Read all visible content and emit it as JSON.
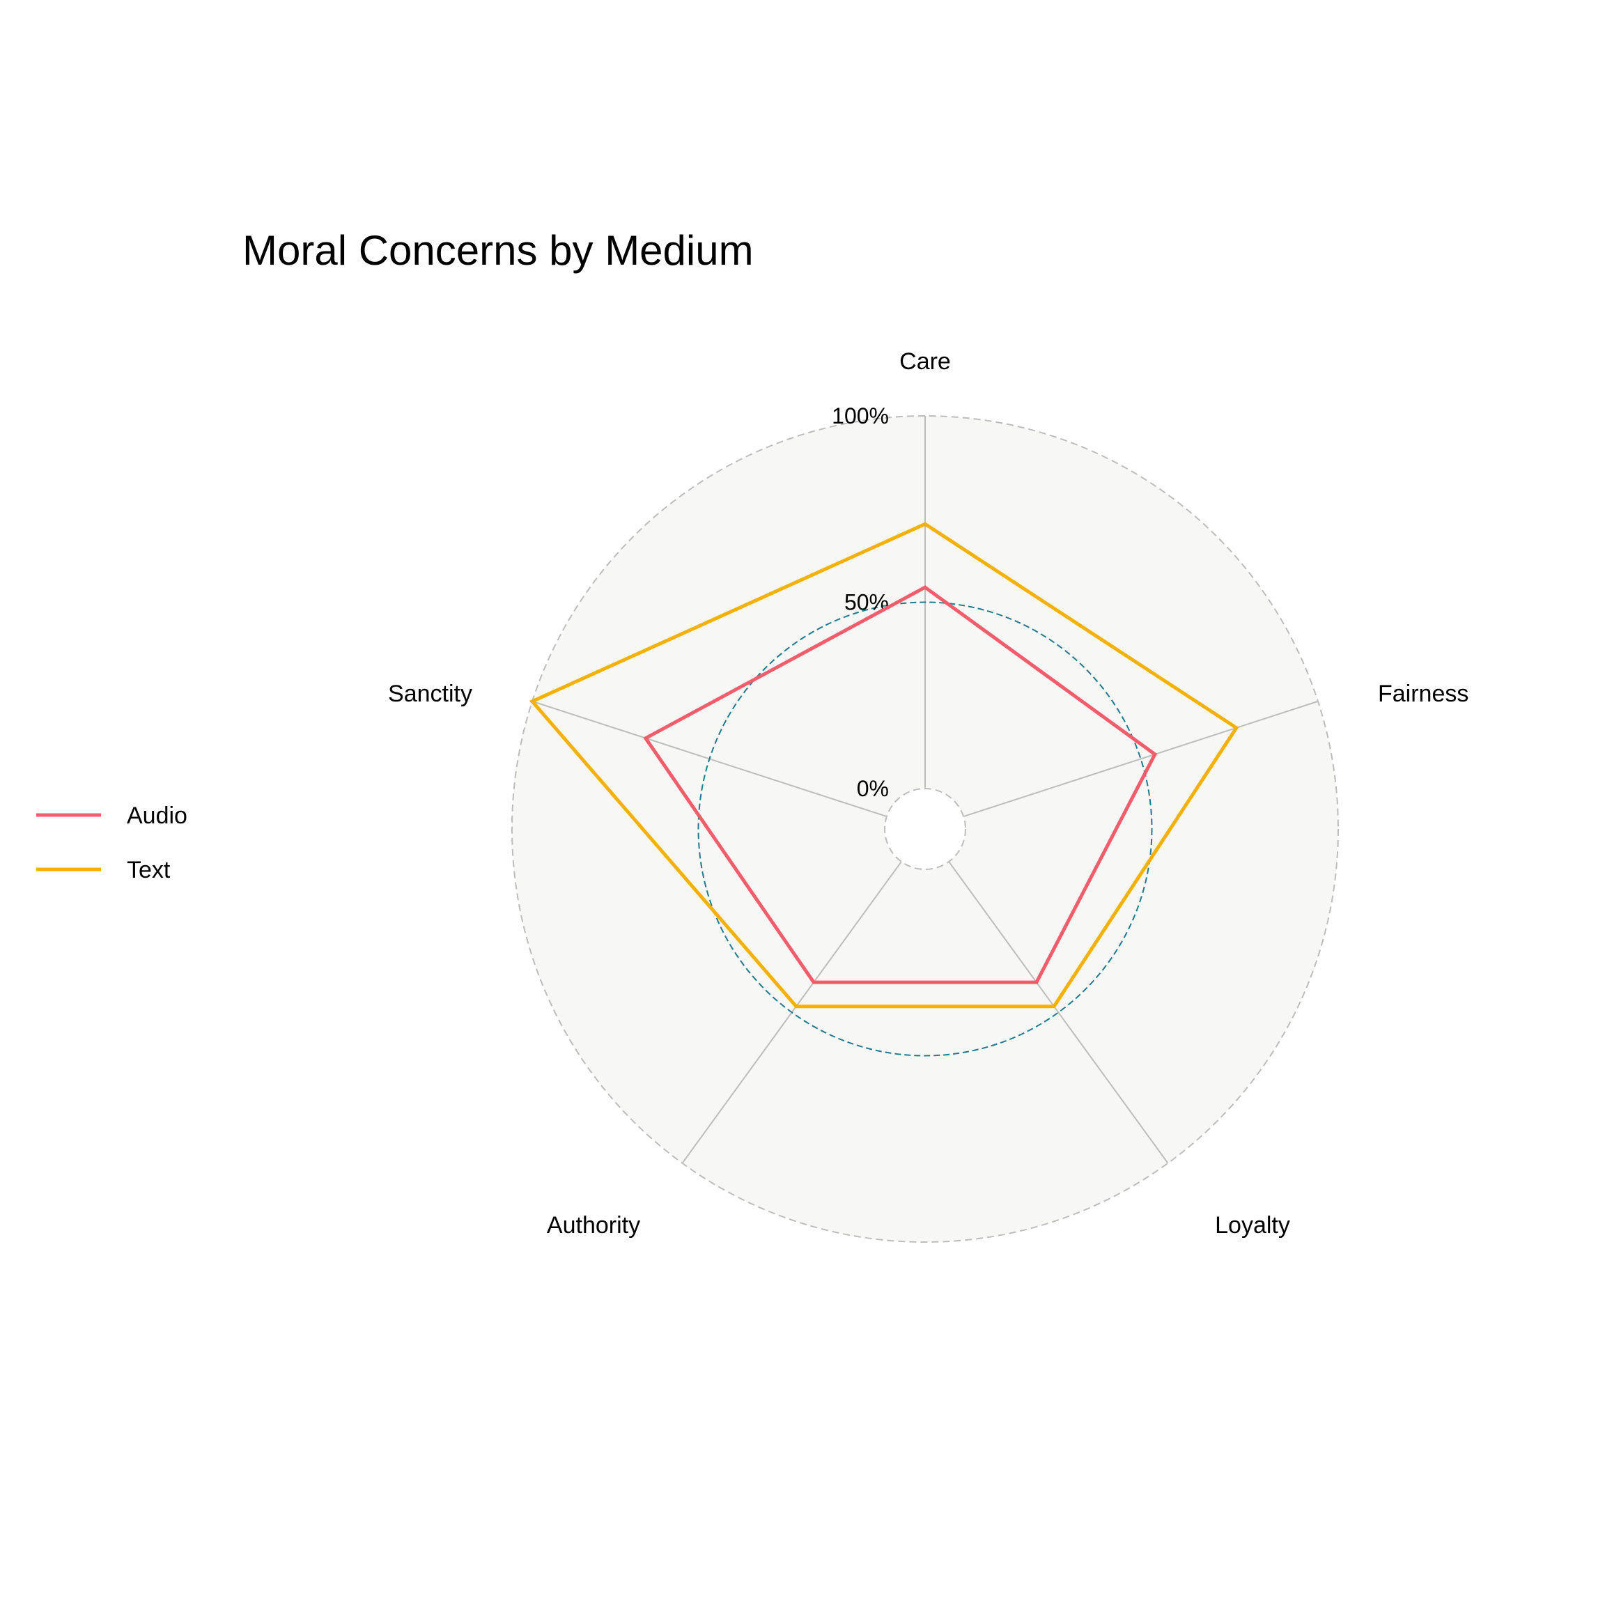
{
  "chart_data": {
    "type": "radar",
    "title": "Moral Concerns by Medium",
    "axes": [
      "Care",
      "Fairness",
      "Loyalty",
      "Authority",
      "Sanctity"
    ],
    "grid_labels": [
      "0%",
      "50%",
      "100%"
    ],
    "rlim": [
      0,
      100
    ],
    "legend_position": "left",
    "series": [
      {
        "name": "Audio",
        "color": "#f25d6b",
        "values": [
          54,
          54,
          40,
          40,
          68
        ]
      },
      {
        "name": "Text",
        "color": "#f4b100",
        "values": [
          71,
          77,
          48,
          48,
          100
        ]
      }
    ],
    "colors": {
      "panel_background": "#f7f7f5",
      "spoke": "#bdbdbd",
      "outer_grid": "#bdbdbd",
      "mid_grid": "#1f7a8c",
      "inner_grid": "#bdbdbd"
    }
  }
}
